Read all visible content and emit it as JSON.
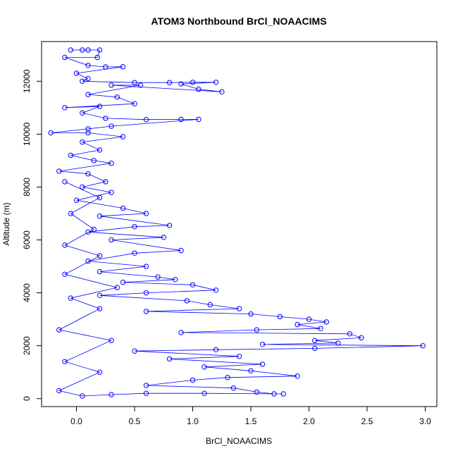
{
  "chart_data": {
    "type": "scatter",
    "title": "ATOM3 Northbound BrCl_NOAACIMS",
    "xlabel": "BrCl_NOAACIMS",
    "ylabel": "Altitude (m)",
    "xlim": [
      -0.3,
      3.1
    ],
    "ylim": [
      -300,
      13500
    ],
    "x_ticks": [
      0.0,
      0.5,
      1.0,
      1.5,
      2.0,
      2.5,
      3.0
    ],
    "x_tick_labels": [
      "0.0",
      "0.5",
      "1.0",
      "1.5",
      "2.0",
      "2.5",
      "3.0"
    ],
    "y_ticks": [
      0,
      2000,
      4000,
      6000,
      8000,
      10000,
      12000
    ],
    "y_tick_labels": [
      "0",
      "2000",
      "4000",
      "6000",
      "8000",
      "10000",
      "12000"
    ],
    "grid": false,
    "legend": "none",
    "series": [
      {
        "color": "#0000ff",
        "marker": "open-circle",
        "connected": true,
        "points": [
          [
            0.05,
            13180
          ],
          [
            -0.05,
            13180
          ],
          [
            0.1,
            13180
          ],
          [
            0.2,
            13180
          ],
          [
            0.18,
            12900
          ],
          [
            -0.1,
            12900
          ],
          [
            0.1,
            12600
          ],
          [
            0.25,
            12540
          ],
          [
            0.4,
            12550
          ],
          [
            0.0,
            12300
          ],
          [
            0.1,
            12100
          ],
          [
            0.05,
            12000
          ],
          [
            0.5,
            11950
          ],
          [
            0.8,
            11950
          ],
          [
            1.0,
            11960
          ],
          [
            1.2,
            11960
          ],
          [
            0.9,
            11900
          ],
          [
            1.05,
            11700
          ],
          [
            1.25,
            11600
          ],
          [
            0.3,
            11850
          ],
          [
            0.55,
            11850
          ],
          [
            0.1,
            11500
          ],
          [
            0.35,
            11400
          ],
          [
            0.5,
            11150
          ],
          [
            -0.1,
            11000
          ],
          [
            0.2,
            11050
          ],
          [
            0.05,
            10800
          ],
          [
            0.25,
            10600
          ],
          [
            0.6,
            10550
          ],
          [
            0.9,
            10560
          ],
          [
            1.05,
            10560
          ],
          [
            0.3,
            10300
          ],
          [
            0.1,
            10200
          ],
          [
            -0.22,
            10050
          ],
          [
            0.1,
            10050
          ],
          [
            0.4,
            9900
          ],
          [
            0.05,
            9700
          ],
          [
            0.2,
            9400
          ],
          [
            -0.05,
            9200
          ],
          [
            0.15,
            9000
          ],
          [
            0.3,
            8900
          ],
          [
            -0.15,
            8600
          ],
          [
            0.1,
            8500
          ],
          [
            0.25,
            8200
          ],
          [
            0.05,
            8000
          ],
          [
            0.3,
            7800
          ],
          [
            0.0,
            7500
          ],
          [
            0.4,
            7200
          ],
          [
            0.6,
            7000
          ],
          [
            0.2,
            6900
          ],
          [
            0.8,
            6550
          ],
          [
            0.5,
            6500
          ],
          [
            0.1,
            6300
          ],
          [
            0.75,
            6100
          ],
          [
            0.3,
            6000
          ],
          [
            0.9,
            5600
          ],
          [
            0.5,
            5500
          ],
          [
            0.1,
            5200
          ],
          [
            0.6,
            5000
          ],
          [
            0.2,
            4800
          ],
          [
            0.7,
            4600
          ],
          [
            0.85,
            4500
          ],
          [
            0.4,
            4400
          ],
          [
            1.0,
            4300
          ],
          [
            1.2,
            4100
          ],
          [
            0.6,
            4000
          ],
          [
            0.2,
            3900
          ],
          [
            0.95,
            3700
          ],
          [
            1.15,
            3550
          ],
          [
            1.4,
            3400
          ],
          [
            0.6,
            3300
          ],
          [
            1.5,
            3200
          ],
          [
            1.75,
            3100
          ],
          [
            2.0,
            3000
          ],
          [
            2.15,
            2900
          ],
          [
            1.9,
            2800
          ],
          [
            2.1,
            2650
          ],
          [
            1.55,
            2600
          ],
          [
            0.9,
            2500
          ],
          [
            2.35,
            2450
          ],
          [
            2.45,
            2300
          ],
          [
            2.05,
            2200
          ],
          [
            2.25,
            2100
          ],
          [
            1.6,
            2050
          ],
          [
            2.98,
            2000
          ],
          [
            2.05,
            1900
          ],
          [
            1.2,
            1850
          ],
          [
            0.5,
            1800
          ],
          [
            1.4,
            1600
          ],
          [
            0.8,
            1500
          ],
          [
            1.6,
            1300
          ],
          [
            1.1,
            1200
          ],
          [
            1.5,
            1050
          ],
          [
            1.9,
            850
          ],
          [
            1.3,
            800
          ],
          [
            1.0,
            700
          ],
          [
            0.6,
            500
          ],
          [
            1.35,
            400
          ],
          [
            1.55,
            250
          ],
          [
            1.7,
            180
          ],
          [
            1.78,
            180
          ],
          [
            1.1,
            200
          ],
          [
            0.6,
            200
          ],
          [
            0.3,
            150
          ],
          [
            0.05,
            100
          ],
          [
            -0.15,
            300
          ],
          [
            0.2,
            1000
          ],
          [
            -0.1,
            1400
          ],
          [
            0.3,
            2200
          ],
          [
            -0.15,
            2600
          ],
          [
            0.2,
            3400
          ],
          [
            -0.05,
            3800
          ],
          [
            0.35,
            4200
          ],
          [
            -0.1,
            4700
          ],
          [
            0.2,
            5400
          ],
          [
            -0.1,
            5800
          ],
          [
            0.15,
            6400
          ],
          [
            -0.05,
            7000
          ],
          [
            0.2,
            7600
          ],
          [
            -0.1,
            8200
          ]
        ]
      }
    ]
  }
}
